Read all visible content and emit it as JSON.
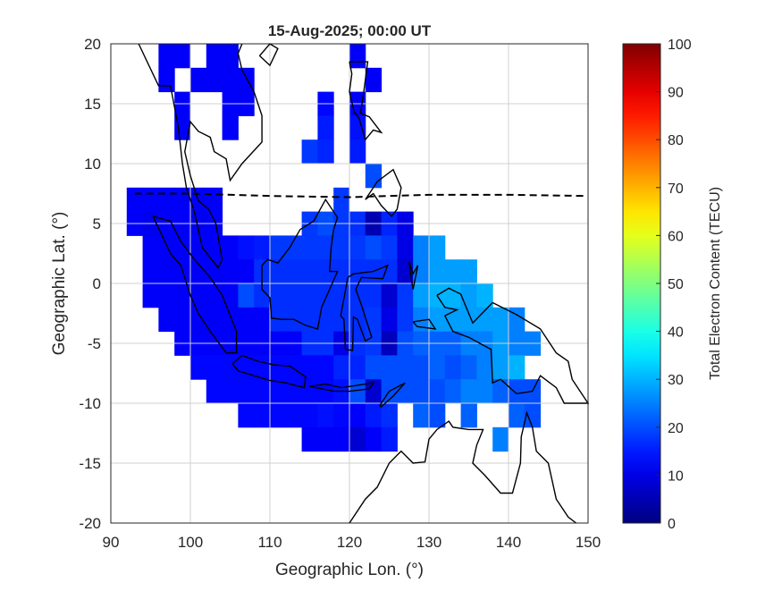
{
  "chart_data": {
    "type": "heatmap",
    "title": "15-Aug-2025; 00:00 UT",
    "xlabel": "Geographic Lon. (°)",
    "ylabel": "Geographic Lat. (°)",
    "xlim": [
      90,
      150
    ],
    "ylim": [
      -20,
      20
    ],
    "xticks": [
      90,
      100,
      110,
      120,
      130,
      140,
      150
    ],
    "yticks": [
      -20,
      -15,
      -10,
      -5,
      0,
      5,
      10,
      15,
      20
    ],
    "grid": true,
    "colorbar": {
      "label": "Total Electron Content (TECU)",
      "colormap": "jet",
      "range": [
        0,
        100
      ],
      "ticks": [
        0,
        10,
        20,
        30,
        40,
        50,
        60,
        70,
        80,
        90,
        100
      ],
      "placement": "right"
    },
    "cell_size_deg": 2,
    "grid_lons": [
      93,
      95,
      97,
      99,
      101,
      103,
      105,
      107,
      109,
      111,
      113,
      115,
      117,
      119,
      121,
      123,
      125,
      127,
      129,
      131,
      133,
      135,
      137,
      139,
      141,
      143
    ],
    "grid_lats": [
      19,
      17,
      15,
      13,
      11,
      9,
      7,
      5,
      3,
      1,
      -1,
      -3,
      -5,
      -7,
      -9,
      -11,
      -13
    ],
    "tec": [
      [
        null,
        null,
        12,
        12,
        null,
        12,
        12,
        null,
        null,
        null,
        null,
        null,
        null,
        null,
        12,
        null,
        null,
        null,
        null,
        null,
        null,
        null,
        null,
        null,
        null,
        null
      ],
      [
        null,
        null,
        12,
        null,
        12,
        12,
        12,
        12,
        null,
        null,
        null,
        null,
        null,
        null,
        null,
        12,
        null,
        null,
        null,
        null,
        null,
        null,
        null,
        null,
        null,
        null
      ],
      [
        null,
        null,
        null,
        12,
        null,
        null,
        12,
        12,
        null,
        null,
        null,
        null,
        13,
        null,
        12,
        null,
        null,
        null,
        null,
        null,
        null,
        null,
        null,
        null,
        null,
        null
      ],
      [
        null,
        null,
        null,
        12,
        null,
        null,
        12,
        null,
        null,
        null,
        null,
        null,
        15,
        null,
        14,
        null,
        null,
        null,
        null,
        null,
        null,
        null,
        null,
        null,
        null,
        null
      ],
      [
        null,
        null,
        null,
        null,
        null,
        null,
        null,
        null,
        null,
        null,
        null,
        18,
        16,
        null,
        15,
        null,
        null,
        null,
        null,
        null,
        null,
        null,
        null,
        null,
        null,
        null
      ],
      [
        null,
        null,
        null,
        null,
        null,
        null,
        null,
        null,
        null,
        null,
        null,
        null,
        null,
        null,
        null,
        20,
        null,
        null,
        null,
        null,
        null,
        null,
        null,
        null,
        null,
        null
      ],
      [
        12,
        12,
        12,
        12,
        12,
        12,
        null,
        null,
        null,
        null,
        null,
        null,
        null,
        18,
        null,
        null,
        null,
        null,
        null,
        null,
        null,
        null,
        null,
        null,
        null,
        null
      ],
      [
        12,
        11,
        12,
        12,
        11,
        12,
        null,
        null,
        null,
        null,
        null,
        18,
        20,
        18,
        17,
        5,
        16,
        10,
        null,
        null,
        null,
        null,
        null,
        null,
        null,
        null
      ],
      [
        null,
        12,
        12,
        12,
        12,
        12,
        12,
        14,
        15,
        18,
        18,
        18,
        18,
        18,
        18,
        20,
        18,
        10,
        25,
        28,
        null,
        null,
        null,
        null,
        null,
        null
      ],
      [
        null,
        12,
        12,
        12,
        12,
        12,
        12,
        12,
        17,
        17,
        17,
        17,
        17,
        17,
        17,
        17,
        17,
        8,
        25,
        28,
        28,
        28,
        null,
        null,
        null,
        null
      ],
      [
        null,
        12,
        12,
        12,
        12,
        12,
        12,
        20,
        17,
        17,
        17,
        17,
        17,
        17,
        17,
        17,
        8,
        18,
        28,
        30,
        30,
        28,
        30,
        null,
        null,
        null
      ],
      [
        null,
        null,
        12,
        12,
        12,
        12,
        12,
        12,
        12,
        17,
        17,
        17,
        17,
        17,
        17,
        18,
        10,
        18,
        25,
        28,
        28,
        28,
        28,
        28,
        25,
        null
      ],
      [
        null,
        null,
        null,
        12,
        12,
        12,
        12,
        12,
        12,
        12,
        12,
        17,
        17,
        10,
        17,
        18,
        6,
        20,
        22,
        22,
        22,
        25,
        25,
        28,
        25,
        25
      ],
      [
        null,
        null,
        null,
        null,
        13,
        13,
        13,
        13,
        13,
        13,
        13,
        13,
        13,
        16,
        16,
        20,
        20,
        20,
        20,
        22,
        20,
        22,
        25,
        28,
        30,
        null
      ],
      [
        null,
        null,
        null,
        null,
        null,
        13,
        13,
        13,
        13,
        13,
        13,
        13,
        13,
        14,
        20,
        8,
        20,
        20,
        20,
        20,
        22,
        25,
        25,
        22,
        20,
        20
      ],
      [
        null,
        null,
        null,
        null,
        null,
        null,
        null,
        13,
        13,
        13,
        13,
        13,
        14,
        13,
        12,
        15,
        17,
        null,
        22,
        20,
        null,
        22,
        null,
        null,
        22,
        20
      ],
      [
        null,
        null,
        null,
        null,
        null,
        null,
        null,
        null,
        null,
        null,
        null,
        12,
        12,
        12,
        8,
        12,
        15,
        null,
        null,
        null,
        null,
        null,
        null,
        25,
        null,
        null
      ]
    ],
    "magnetic_equator": {
      "style": "dashed",
      "lon": [
        93,
        100,
        110,
        120,
        130,
        140,
        150
      ],
      "lat": [
        7.5,
        7.5,
        7.3,
        7.2,
        7.4,
        7.4,
        7.3
      ]
    }
  }
}
